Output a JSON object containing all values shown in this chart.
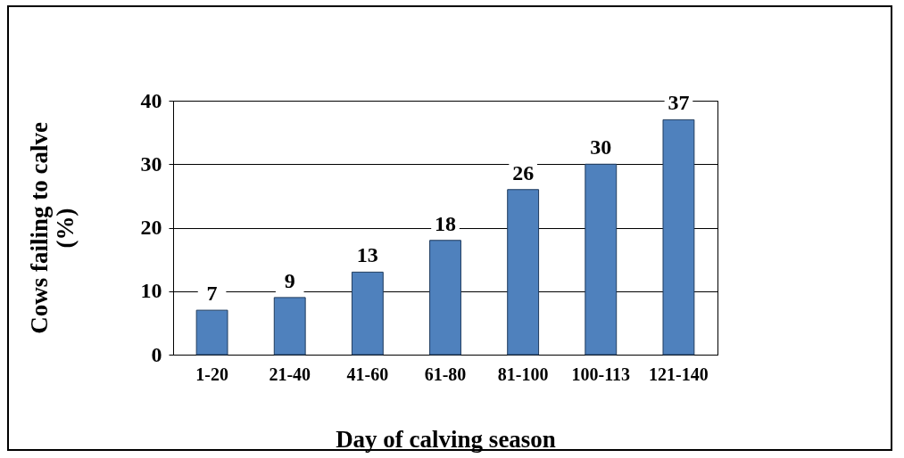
{
  "chart_data": {
    "type": "bar",
    "xlabel": "Day of calving season",
    "ylabel": "Cows failing to calve (%)",
    "categories": [
      "1-20",
      "21-40",
      "41-60",
      "61-80",
      "81-100",
      "100-113",
      "121-140"
    ],
    "values": [
      7,
      9,
      13,
      18,
      26,
      30,
      37
    ],
    "color": "#4f81bd",
    "ylim": [
      0,
      40
    ],
    "yticks": [
      0,
      10,
      20,
      30,
      40
    ],
    "grid": "y",
    "data_labels": true
  }
}
